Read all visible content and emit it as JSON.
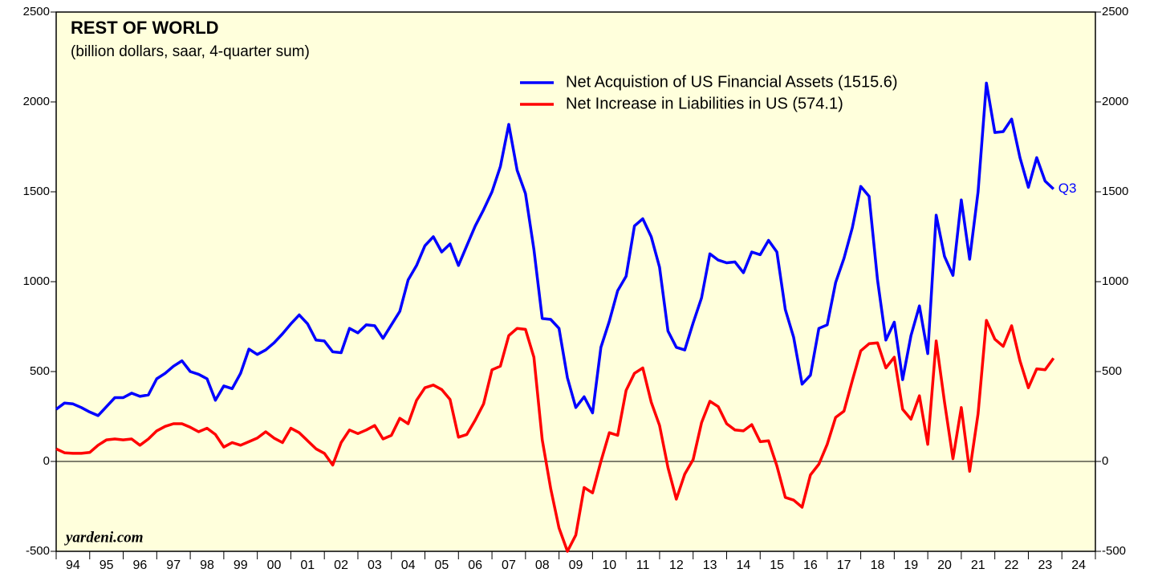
{
  "chart_data": {
    "type": "line",
    "title": "REST OF WORLD",
    "subtitle": "(billion dollars, saar, 4-quarter sum)",
    "annotation": "Q3",
    "source": "yardeni.com",
    "xlim": [
      1994,
      2025
    ],
    "xticks": [
      {
        "value": 1994,
        "label": "94"
      },
      {
        "value": 1995,
        "label": "95"
      },
      {
        "value": 1996,
        "label": "96"
      },
      {
        "value": 1997,
        "label": "97"
      },
      {
        "value": 1998,
        "label": "98"
      },
      {
        "value": 1999,
        "label": "99"
      },
      {
        "value": 2000,
        "label": "00"
      },
      {
        "value": 2001,
        "label": "01"
      },
      {
        "value": 2002,
        "label": "02"
      },
      {
        "value": 2003,
        "label": "03"
      },
      {
        "value": 2004,
        "label": "04"
      },
      {
        "value": 2005,
        "label": "05"
      },
      {
        "value": 2006,
        "label": "06"
      },
      {
        "value": 2007,
        "label": "07"
      },
      {
        "value": 2008,
        "label": "08"
      },
      {
        "value": 2009,
        "label": "09"
      },
      {
        "value": 2010,
        "label": "10"
      },
      {
        "value": 2011,
        "label": "11"
      },
      {
        "value": 2012,
        "label": "12"
      },
      {
        "value": 2013,
        "label": "13"
      },
      {
        "value": 2014,
        "label": "14"
      },
      {
        "value": 2015,
        "label": "15"
      },
      {
        "value": 2016,
        "label": "16"
      },
      {
        "value": 2017,
        "label": "17"
      },
      {
        "value": 2018,
        "label": "18"
      },
      {
        "value": 2019,
        "label": "19"
      },
      {
        "value": 2020,
        "label": "20"
      },
      {
        "value": 2021,
        "label": "21"
      },
      {
        "value": 2022,
        "label": "22"
      },
      {
        "value": 2023,
        "label": "23"
      },
      {
        "value": 2024,
        "label": "24"
      }
    ],
    "ylim": [
      -500,
      2500
    ],
    "yticks": [
      -500,
      0,
      500,
      1000,
      1500,
      2000,
      2500
    ],
    "zero_line": true,
    "background": "#ffffdc",
    "x": [
      1994,
      1994.25,
      1994.5,
      1994.75,
      1995,
      1995.25,
      1995.5,
      1995.75,
      1996,
      1996.25,
      1996.5,
      1996.75,
      1997,
      1997.25,
      1997.5,
      1997.75,
      1998,
      1998.25,
      1998.5,
      1998.75,
      1999,
      1999.25,
      1999.5,
      1999.75,
      2000,
      2000.25,
      2000.5,
      2000.75,
      2001,
      2001.25,
      2001.5,
      2001.75,
      2002,
      2002.25,
      2002.5,
      2002.75,
      2003,
      2003.25,
      2003.5,
      2003.75,
      2004,
      2004.25,
      2004.5,
      2004.75,
      2005,
      2005.25,
      2005.5,
      2005.75,
      2006,
      2006.25,
      2006.5,
      2006.75,
      2007,
      2007.25,
      2007.5,
      2007.75,
      2008,
      2008.25,
      2008.5,
      2008.75,
      2009,
      2009.25,
      2009.5,
      2009.75,
      2010,
      2010.25,
      2010.5,
      2010.75,
      2011,
      2011.25,
      2011.5,
      2011.75,
      2012,
      2012.25,
      2012.5,
      2012.75,
      2013,
      2013.25,
      2013.5,
      2013.75,
      2014,
      2014.25,
      2014.5,
      2014.75,
      2015,
      2015.25,
      2015.5,
      2015.75,
      2016,
      2016.25,
      2016.5,
      2016.75,
      2017,
      2017.25,
      2017.5,
      2017.75,
      2018,
      2018.25,
      2018.5,
      2018.75,
      2019,
      2019.25,
      2019.5,
      2019.75,
      2020,
      2020.25,
      2020.5,
      2020.75,
      2021,
      2021.25,
      2021.5,
      2021.75,
      2022,
      2022.25,
      2022.5,
      2022.75,
      2023,
      2023.25,
      2023.5,
      2023.75
    ],
    "series": [
      {
        "name": "Net Acquistion of US Financial Assets (1515.6)",
        "color": "#0000ff",
        "values": [
          290,
          325,
          320,
          300,
          275,
          255,
          305,
          355,
          355,
          380,
          362,
          370,
          460,
          490,
          530,
          560,
          500,
          485,
          460,
          340,
          420,
          405,
          490,
          625,
          595,
          620,
          660,
          710,
          765,
          815,
          765,
          675,
          670,
          610,
          605,
          740,
          715,
          760,
          755,
          685,
          760,
          835,
          1010,
          1090,
          1200,
          1250,
          1165,
          1210,
          1090,
          1200,
          1310,
          1400,
          1500,
          1640,
          1875,
          1620,
          1490,
          1180,
          795,
          790,
          740,
          465,
          300,
          360,
          270,
          635,
          780,
          950,
          1030,
          1310,
          1350,
          1250,
          1080,
          725,
          635,
          620,
          770,
          910,
          1155,
          1120,
          1105,
          1110,
          1050,
          1165,
          1150,
          1230,
          1165,
          845,
          690,
          430,
          480,
          740,
          760,
          995,
          1130,
          1300,
          1530,
          1475,
          1010,
          675,
          775,
          455,
          700,
          865,
          600,
          1370,
          1140,
          1035,
          1455,
          1125,
          1500,
          2105,
          1830,
          1835,
          1905,
          1690,
          1525,
          1690,
          1560,
          1515.6
        ]
      },
      {
        "name": "Net Increase in Liabilities in US (574.1)",
        "color": "#ff0000",
        "values": [
          70,
          48,
          45,
          45,
          50,
          90,
          120,
          125,
          120,
          125,
          90,
          125,
          170,
          195,
          210,
          210,
          190,
          165,
          185,
          150,
          80,
          105,
          90,
          110,
          130,
          165,
          130,
          105,
          185,
          160,
          115,
          70,
          45,
          -20,
          105,
          175,
          155,
          175,
          200,
          125,
          145,
          240,
          210,
          340,
          410,
          425,
          400,
          345,
          135,
          150,
          230,
          320,
          510,
          530,
          700,
          740,
          735,
          580,
          120,
          -150,
          -370,
          -500,
          -410,
          -145,
          -175,
          0,
          160,
          145,
          395,
          490,
          520,
          330,
          200,
          -35,
          -210,
          -70,
          10,
          215,
          335,
          305,
          210,
          175,
          170,
          205,
          110,
          115,
          -25,
          -200,
          -215,
          -255,
          -75,
          -15,
          95,
          245,
          280,
          450,
          615,
          655,
          660,
          520,
          580,
          290,
          235,
          365,
          95,
          670,
          330,
          15,
          300,
          -55,
          265,
          785,
          680,
          640,
          755,
          560,
          410,
          515,
          510,
          574.1
        ]
      }
    ]
  }
}
